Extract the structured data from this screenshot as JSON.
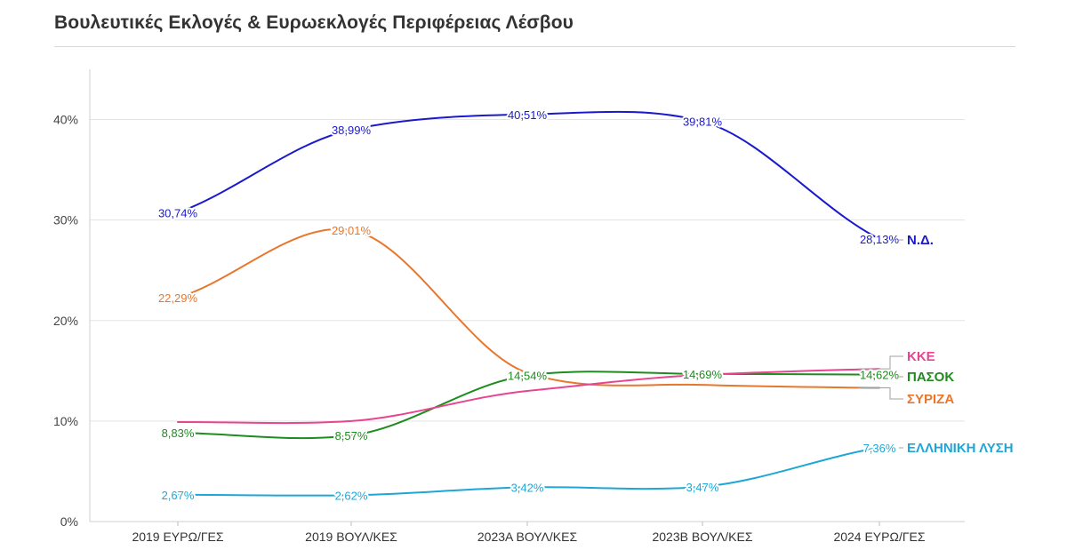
{
  "title": "Βουλευτικές Εκλογές & Ευρωεκλογές Περιφέρειας Λέσβου",
  "chart_data": {
    "type": "line",
    "title": "Βουλευτικές Εκλογές & Ευρωεκλογές Περιφέρειας Λέσβου",
    "xlabel": "",
    "ylabel": "",
    "categories": [
      "2019 ΕΥΡΩ/ΓΕΣ",
      "2019 ΒΟΥΛ/ΚΕΣ",
      "2023Α ΒΟΥΛ/ΚΕΣ",
      "2023Β ΒΟΥΛ/ΚΕΣ",
      "2024 ΕΥΡΩ/ΓΕΣ"
    ],
    "ylim": [
      0,
      45
    ],
    "yticks": [
      0,
      10,
      20,
      30,
      40
    ],
    "ytick_labels": [
      "0%",
      "10%",
      "20%",
      "30%",
      "40%"
    ],
    "grid": true,
    "legend": "labels at right end of lines",
    "series": [
      {
        "name": "Ν.Δ.",
        "color": "#1a1acc",
        "values": [
          30.74,
          38.99,
          40.51,
          39.81,
          28.13
        ],
        "labels": [
          "30,74%",
          "38,99%",
          "40,51%",
          "39,81%",
          "28,13%"
        ]
      },
      {
        "name": "ΣΥΡΙΖΑ",
        "color": "#e8772e",
        "values": [
          22.29,
          29.01,
          14.8,
          13.6,
          13.3
        ],
        "labels": [
          "22,29%",
          "29,01%",
          "",
          "",
          ""
        ]
      },
      {
        "name": "ΠΑΣΟΚ",
        "color": "#1e8c1e",
        "values": [
          8.83,
          8.57,
          14.54,
          14.69,
          14.62
        ],
        "labels": [
          "8,83%",
          "8,57%",
          "14,54%",
          "14,69%",
          "14,62%"
        ]
      },
      {
        "name": "ΚΚΕ",
        "color": "#e8448f",
        "values": [
          9.9,
          10.0,
          13.0,
          14.6,
          15.2
        ],
        "labels": [
          "",
          "",
          "",
          "",
          ""
        ]
      },
      {
        "name": "ΕΛΛΗΝΙΚΗ ΛΥΣΗ",
        "color": "#1ea7d6",
        "values": [
          2.67,
          2.62,
          3.42,
          3.47,
          7.36
        ],
        "labels": [
          "2,67%",
          "2,62%",
          "3,42%",
          "3,47%",
          "7,36%"
        ]
      }
    ]
  }
}
